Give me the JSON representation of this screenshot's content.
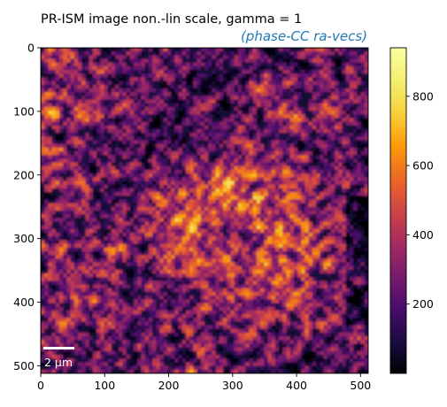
{
  "chart_data": {
    "type": "heatmap",
    "title": "PR-ISM image non.-lin scale, gamma = 1",
    "subtitle": "(phase-CC ra-vecs)",
    "colors": {
      "subtitle": "#1f77b4",
      "scalebar": "#ffffff",
      "axis": "#000000"
    },
    "colormap": "inferno",
    "x_ticks": [
      "0",
      "100",
      "200",
      "300",
      "400",
      "500"
    ],
    "y_ticks": [
      "0",
      "100",
      "200",
      "300",
      "400",
      "500"
    ],
    "xlim": [
      0,
      512
    ],
    "ylim": [
      512,
      0
    ],
    "colorbar": {
      "range": [
        0,
        940
      ],
      "ticks": [
        "200",
        "400",
        "600",
        "800"
      ]
    },
    "scale_bar_label": "2 µm"
  }
}
